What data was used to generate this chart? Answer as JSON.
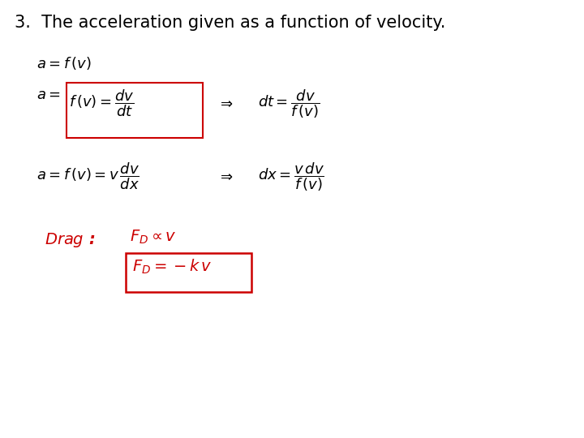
{
  "title": "3.  The acceleration given as a function of velocity.",
  "background_color": "#ffffff",
  "title_fontsize": 15,
  "eq_fontsize": 13,
  "eq_color": "#000000",
  "red_color": "#cc0000",
  "fig_width": 7.2,
  "fig_height": 5.4,
  "dpi": 100
}
